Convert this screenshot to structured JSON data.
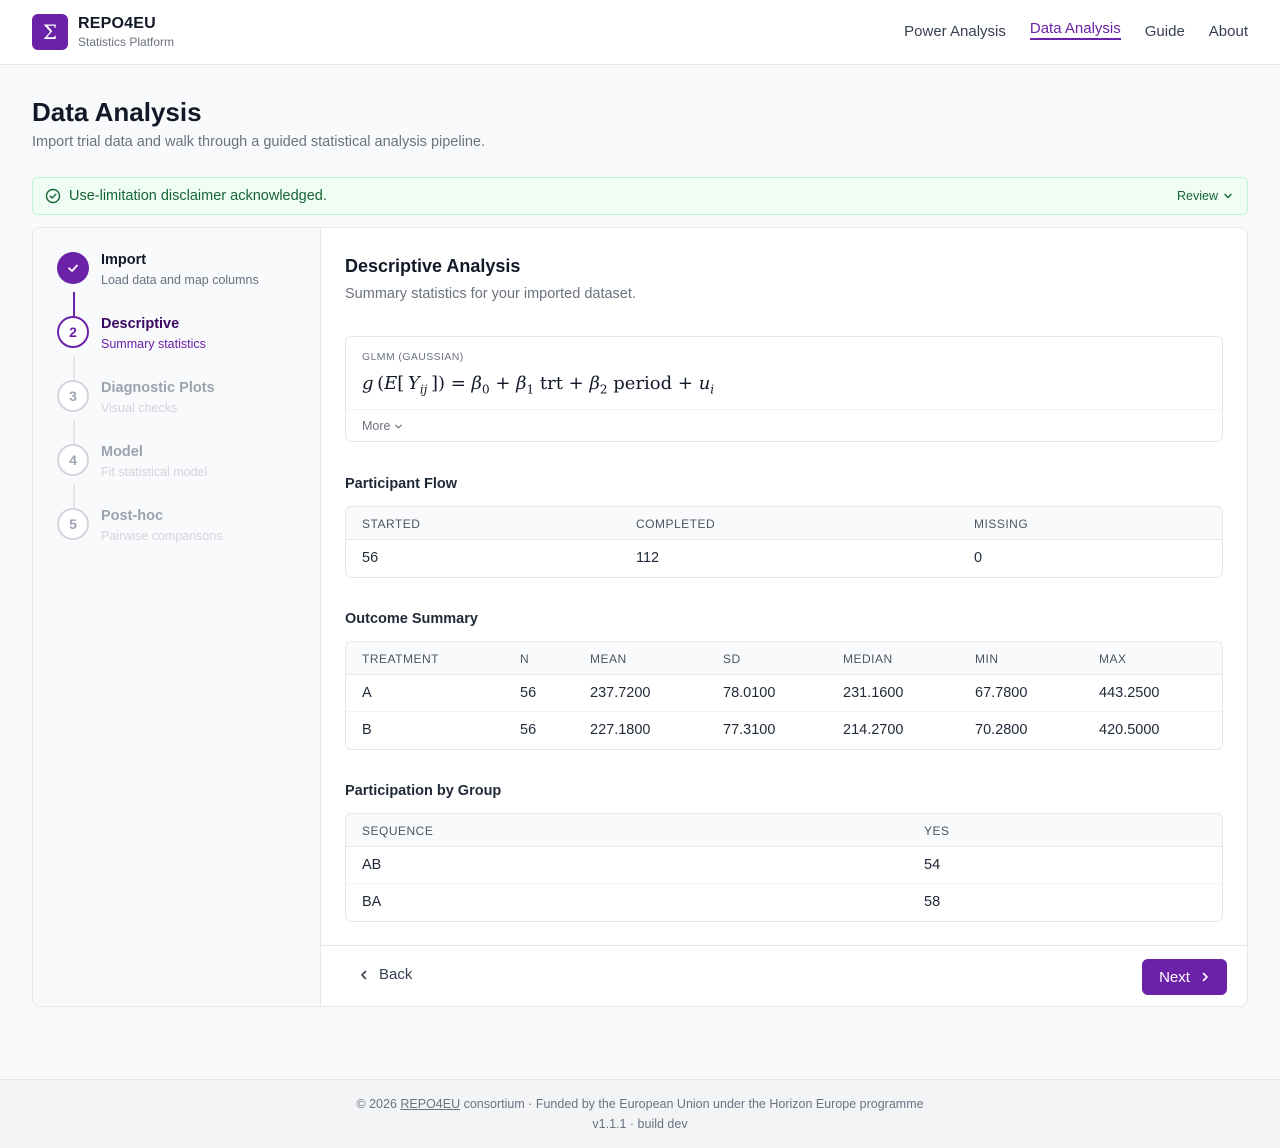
{
  "header": {
    "logo_glyph": "Σ",
    "brand_name": "REPO4EU",
    "brand_sub": "Statistics Platform",
    "nav": [
      {
        "label": "Power Analysis",
        "active": false
      },
      {
        "label": "Data Analysis",
        "active": true
      },
      {
        "label": "Guide",
        "active": false
      },
      {
        "label": "About",
        "active": false
      }
    ]
  },
  "page": {
    "title": "Data Analysis",
    "subtitle": "Import trial data and walk through a guided statistical analysis pipeline."
  },
  "banner": {
    "icon": "check-circle-icon",
    "text": "Use-limitation disclaimer acknowledged.",
    "action": "Review"
  },
  "steps": [
    {
      "number": "1",
      "title": "Import",
      "desc": "Load data and map columns",
      "state": "done"
    },
    {
      "number": "2",
      "title": "Descriptive",
      "desc": "Summary statistics",
      "state": "current"
    },
    {
      "number": "3",
      "title": "Diagnostic Plots",
      "desc": "Visual checks",
      "state": "todo"
    },
    {
      "number": "4",
      "title": "Model",
      "desc": "Fit statistical model",
      "state": "todo"
    },
    {
      "number": "5",
      "title": "Post-hoc",
      "desc": "Pairwise comparisons",
      "state": "todo"
    }
  ],
  "section": {
    "title": "Descriptive Analysis",
    "subtitle": "Summary statistics for your imported dataset."
  },
  "formula": {
    "label": "GLMM (GAUSSIAN)",
    "more": "More"
  },
  "participant_flow": {
    "title": "Participant Flow",
    "headers": [
      "STARTED",
      "COMPLETED",
      "MISSING"
    ],
    "rows": [
      [
        "56",
        "112",
        "0"
      ]
    ]
  },
  "outcome_summary": {
    "title": "Outcome Summary",
    "headers": [
      "TREATMENT",
      "N",
      "MEAN",
      "SD",
      "MEDIAN",
      "MIN",
      "MAX"
    ],
    "rows": [
      [
        "A",
        "56",
        "237.7200",
        "78.0100",
        "231.1600",
        "67.7800",
        "443.2500"
      ],
      [
        "B",
        "56",
        "227.1800",
        "77.3100",
        "214.2700",
        "70.2800",
        "420.5000"
      ]
    ]
  },
  "participation": {
    "title": "Participation by Group",
    "headers": [
      "SEQUENCE",
      "YES"
    ],
    "rows": [
      [
        "AB",
        "54"
      ],
      [
        "BA",
        "58"
      ]
    ]
  },
  "actions": {
    "back": "Back",
    "next": "Next"
  },
  "footer": {
    "prefix": "© 2026 ",
    "link": "REPO4EU",
    "suffix": " consortium · Funded by the European Union under the Horizon Europe programme",
    "version": "v1.1.1 · build dev"
  },
  "colors": {
    "accent": "#6b21a8",
    "success_bg": "#f0fdf4",
    "success_text": "#166534"
  }
}
